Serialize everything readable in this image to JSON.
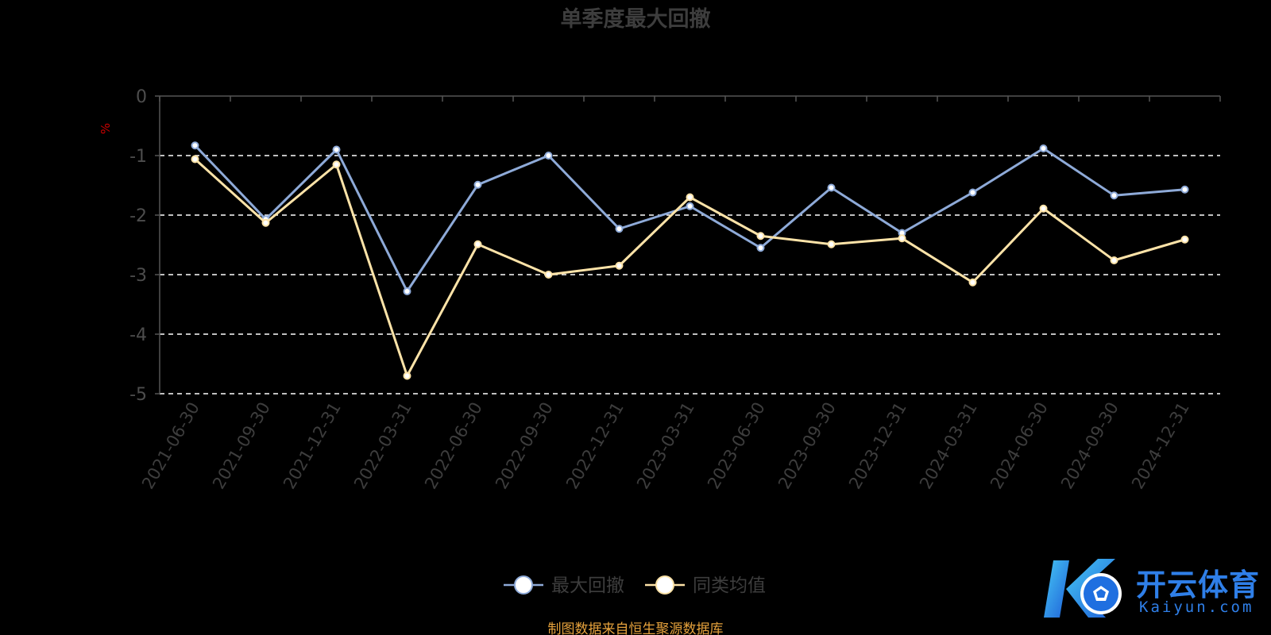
{
  "chart_data": {
    "type": "line",
    "title": "单季度最大回撤",
    "ylabel": "%",
    "ylim": [
      -5,
      0
    ],
    "yticks": [
      "0",
      "-1",
      "-2",
      "-3",
      "-4",
      "-5"
    ],
    "yticks_values": [
      0,
      -1,
      -2,
      -3,
      -4,
      -5
    ],
    "grid": true,
    "legend_position": "bottom-center",
    "categories": [
      "2021-06-30",
      "2021-09-30",
      "2021-12-31",
      "2022-03-31",
      "2022-06-30",
      "2022-09-30",
      "2022-12-31",
      "2023-03-31",
      "2023-06-30",
      "2023-09-30",
      "2023-12-31",
      "2024-03-31",
      "2024-06-30",
      "2024-09-30",
      "2024-12-31"
    ],
    "series": [
      {
        "name": "最大回撤",
        "color": "#8eaad8",
        "values": [
          -0.83,
          -2.07,
          -0.9,
          -3.28,
          -1.49,
          -1.0,
          -2.23,
          -1.85,
          -2.55,
          -1.54,
          -2.3,
          -1.62,
          -0.88,
          -1.67,
          -1.57
        ]
      },
      {
        "name": "同类均值",
        "color": "#fde3a8",
        "values": [
          -1.06,
          -2.13,
          -1.15,
          -4.7,
          -2.49,
          -3.0,
          -2.85,
          -1.7,
          -2.35,
          -2.49,
          -2.39,
          -3.13,
          -1.89,
          -2.76,
          -2.41
        ]
      }
    ]
  },
  "footer": {
    "source": "制图数据来自恒生聚源数据库"
  },
  "logo": {
    "cn": "开云体育",
    "en": "Kaiyun.com"
  }
}
